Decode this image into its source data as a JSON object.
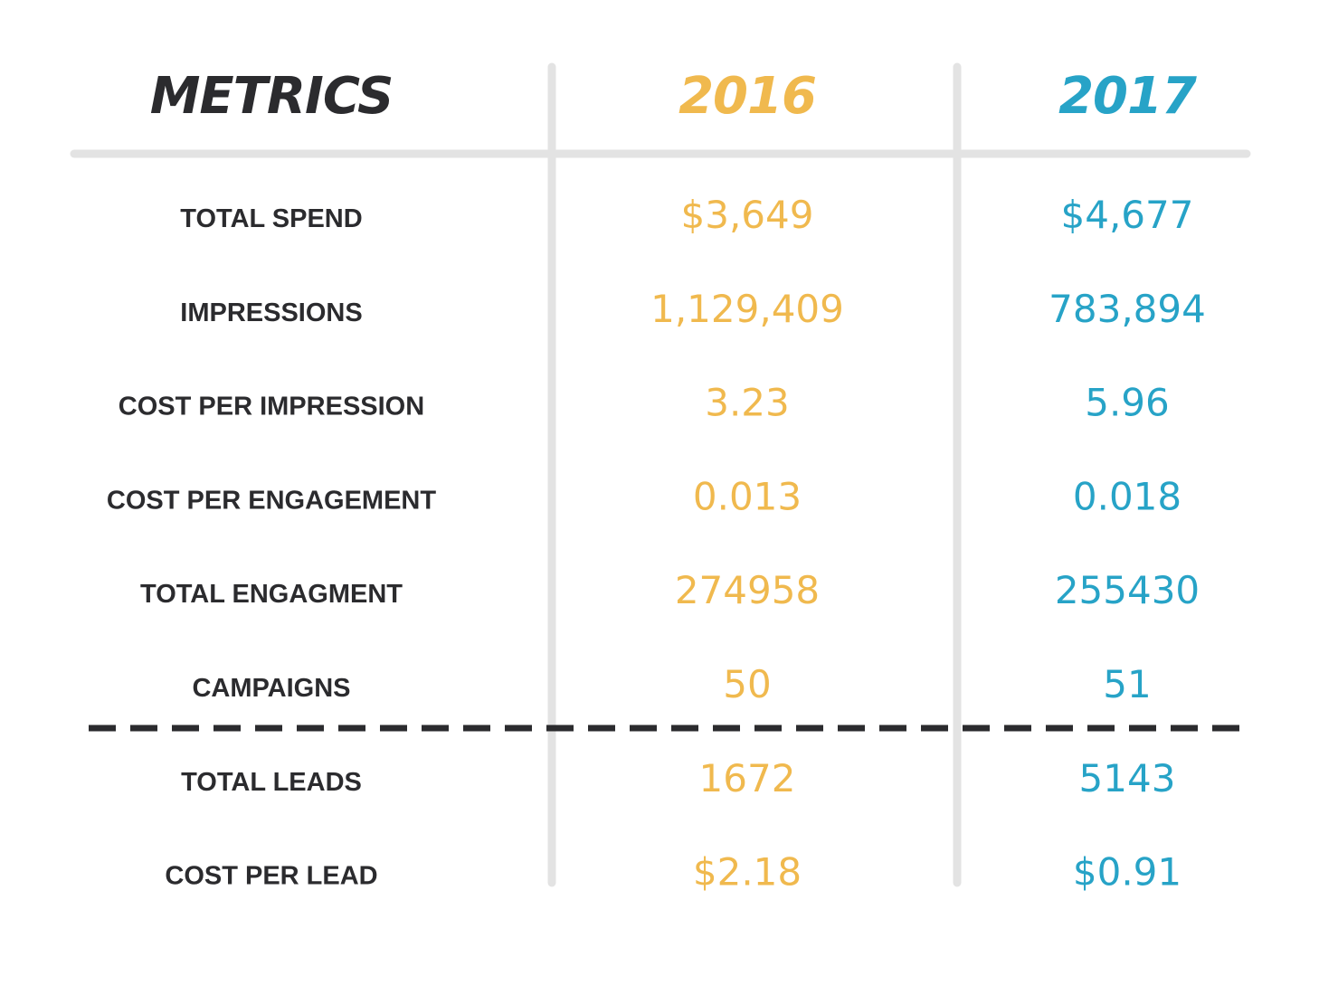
{
  "chart_data": {
    "type": "table",
    "columns": [
      "METRICS",
      "2016",
      "2017"
    ],
    "rows": [
      {
        "label": "TOTAL SPEND",
        "values": [
          "$3,649",
          "$4,677"
        ]
      },
      {
        "label": "IMPRESSIONS",
        "values": [
          "1,129,409",
          "783,894"
        ]
      },
      {
        "label": "COST PER IMPRESSION",
        "values": [
          "3.23",
          "5.96"
        ]
      },
      {
        "label": "COST PER ENGAGEMENT",
        "values": [
          "0.013",
          "0.018"
        ]
      },
      {
        "label": "TOTAL ENGAGMENT",
        "values": [
          "274958",
          "255430"
        ]
      },
      {
        "label": "CAMPAIGNS",
        "values": [
          "50",
          "51"
        ]
      },
      {
        "label": "TOTAL LEADS",
        "values": [
          "1672",
          "5143"
        ]
      },
      {
        "label": "COST PER LEAD",
        "values": [
          "$2.18",
          "$0.91"
        ]
      }
    ],
    "separator_after_row": 5,
    "colors": {
      "label": "#2b2b2e",
      "year_2016": "#f0b94e",
      "year_2017": "#27a3c7",
      "grid": "#e3e3e3",
      "separator": "#2b2b2e"
    }
  }
}
